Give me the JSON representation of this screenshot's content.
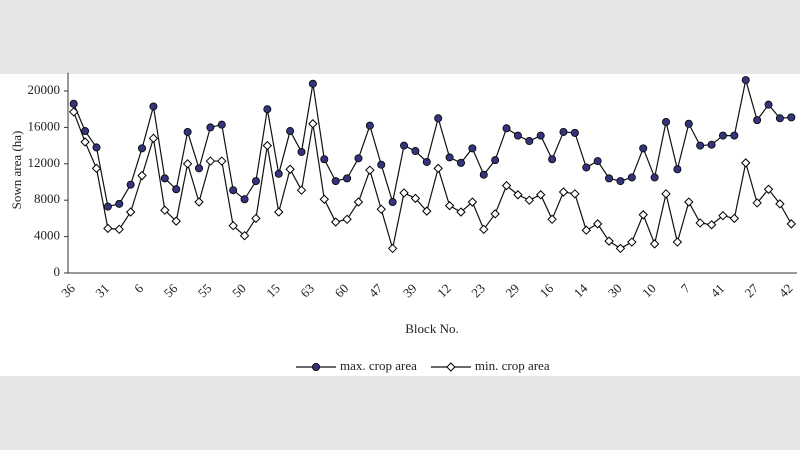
{
  "chart_data": {
    "type": "line",
    "y_label": "Sown area (ha)",
    "x_label": "Block No.",
    "categories": [
      "36",
      null,
      null,
      "31",
      null,
      null,
      "6",
      null,
      null,
      "56",
      null,
      null,
      "55",
      null,
      null,
      "50",
      null,
      null,
      "15",
      null,
      null,
      "63",
      null,
      null,
      "60",
      null,
      null,
      "47",
      null,
      null,
      "39",
      null,
      null,
      "12",
      null,
      null,
      "23",
      null,
      null,
      "29",
      null,
      null,
      "16",
      null,
      null,
      "14",
      null,
      null,
      "30",
      null,
      null,
      "10",
      null,
      null,
      "7",
      null,
      null,
      "41",
      null,
      null,
      "27",
      null,
      null,
      "42"
    ],
    "series": [
      {
        "name": "max. crop area",
        "color": "#34347a",
        "marker": "circle",
        "values": [
          18600,
          15600,
          13800,
          7300,
          7600,
          9700,
          13700,
          18300,
          10400,
          9200,
          15500,
          11500,
          16000,
          16300,
          9100,
          8100,
          10100,
          18000,
          10900,
          15600,
          13300,
          20800,
          12500,
          10100,
          10400,
          12600,
          16200,
          11900,
          7800,
          14000,
          13400,
          12200,
          17000,
          12700,
          12100,
          13700,
          10800,
          12400,
          15900,
          15100,
          14500,
          15100,
          12500,
          15500,
          15400,
          11600,
          12300,
          10400,
          10100,
          10500,
          13700,
          10500,
          16600,
          11400,
          16400,
          14000,
          14100,
          15100,
          15100,
          21200,
          16800,
          18500,
          17000,
          17100
        ]
      },
      {
        "name": "min. crop area",
        "color": "#ffffff",
        "marker": "diamond",
        "values": [
          17700,
          14400,
          11500,
          4900,
          4800,
          6700,
          10700,
          14800,
          6900,
          5700,
          12000,
          7800,
          12300,
          12300,
          5200,
          4100,
          6000,
          14000,
          6700,
          11400,
          9100,
          16400,
          8100,
          5600,
          5900,
          7800,
          11300,
          7000,
          2700,
          8800,
          8200,
          6800,
          11500,
          7400,
          6700,
          7800,
          4800,
          6500,
          9600,
          8600,
          8000,
          8600,
          5900,
          8900,
          8700,
          4700,
          5400,
          3500,
          2700,
          3400,
          6400,
          3200,
          8700,
          3400,
          7800,
          5500,
          5300,
          6300,
          6000,
          12100,
          7700,
          9200,
          7600,
          5400
        ]
      }
    ],
    "ylim": [
      0,
      22000
    ],
    "yticks": [
      0,
      4000,
      8000,
      12000,
      16000,
      20000
    ],
    "grid": false
  }
}
